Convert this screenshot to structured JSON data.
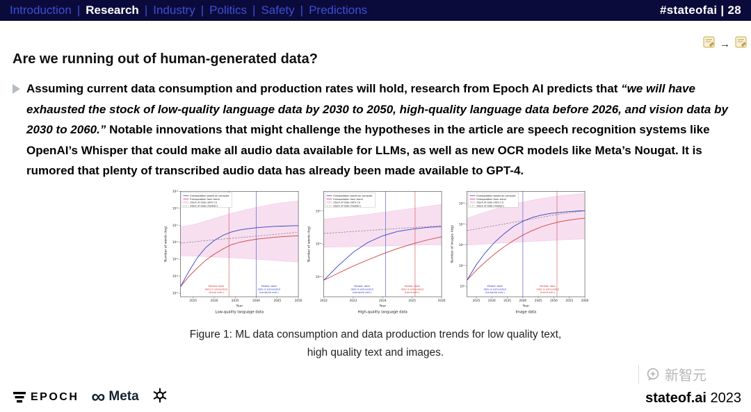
{
  "nav": {
    "separator": "|",
    "items": [
      {
        "label": "Introduction",
        "active": false
      },
      {
        "label": "Research",
        "active": true
      },
      {
        "label": "Industry",
        "active": false
      },
      {
        "label": "Politics",
        "active": false
      },
      {
        "label": "Safety",
        "active": false
      },
      {
        "label": "Predictions",
        "active": false
      }
    ],
    "right": "#stateofai | 28"
  },
  "icons": {
    "arrow": "→",
    "infinity": "∞"
  },
  "colors": {
    "navbar_bg": "#0b0b3b",
    "nav_link": "#3e4ed6",
    "nav_active": "#ffffff",
    "watermark": "#b0b0b0"
  },
  "main": {
    "title": "Are we running out of human-generated data?",
    "bullet": {
      "part1": "Assuming current data consumption and production rates will hold, research from Epoch AI predicts that ",
      "quote": "“we will have exhausted the stock of low-quality language data by 2030 to 2050, high-quality language data before 2026, and vision data by 2030 to 2060.”",
      "part2": " Notable innovations that might challenge the hypotheses in the article are speech recognition systems like OpenAI’s Whisper that could make all audio data available for LLMs, as well as new OCR models like Meta’s Nougat. It is rumored that plenty of transcribed audio data has already been made available to GPT-4."
    }
  },
  "caption": {
    "line1": "Figure 1: ML data consumption and data production trends for low quality text,",
    "line2": "high quality text and images."
  },
  "footer": {
    "epoch_label": "EPOCH",
    "meta_label": "Meta",
    "stateofai_bold": "stateof.ai",
    "year": " 2023",
    "watermark": "新智元"
  },
  "chart_style": {
    "compute": "#2f3fc1",
    "trend": "#d23a3a",
    "band": "#edb9de",
    "band_edge": "#e27fc3",
    "median": "#7a7a7a"
  },
  "chart_data": [
    {
      "type": "line",
      "title": "Low-quality language data",
      "xlabel": "Year",
      "ylabel": "Number of words (log)",
      "legend": [
        "Extrapolation based on compute",
        "Extrapolation from trend",
        "Stock of data (90% CI)",
        "Stock of data (median)"
      ],
      "xlim": [
        2022,
        2050
      ],
      "ylim": [
        12.8,
        19
      ],
      "xticks": [
        2025,
        2030,
        2035,
        2040,
        2045,
        2050
      ],
      "ytick_exponents": [
        13,
        14,
        15,
        16,
        17,
        18,
        19
      ],
      "x": [
        2022,
        2024,
        2026,
        2028,
        2030,
        2032,
        2034,
        2036,
        2038,
        2040,
        2042,
        2044,
        2046,
        2048,
        2050
      ],
      "series": {
        "compute": [
          13.4,
          14.3,
          15.1,
          15.7,
          16.1,
          16.4,
          16.6,
          16.72,
          16.8,
          16.86,
          16.9,
          16.93,
          16.95,
          16.97,
          16.98
        ],
        "trend": [
          13.4,
          14.0,
          14.5,
          14.95,
          15.3,
          15.6,
          15.85,
          16.0,
          16.1,
          16.18,
          16.24,
          16.29,
          16.33,
          16.36,
          16.38
        ],
        "stock_median": [
          15.95,
          16.0,
          16.05,
          16.1,
          16.14,
          16.19,
          16.23,
          16.28,
          16.32,
          16.37,
          16.41,
          16.46,
          16.5,
          16.55,
          16.6
        ],
        "ci_upper": [
          16.9,
          17.0,
          17.1,
          17.25,
          17.4,
          17.55,
          17.7,
          17.82,
          17.94,
          18.05,
          18.15,
          18.25,
          18.32,
          18.38,
          18.42
        ],
        "ci_lower": [
          15.2,
          15.2,
          15.18,
          15.16,
          15.14,
          15.12,
          15.1,
          15.07,
          15.04,
          15.0,
          14.97,
          14.94,
          14.9,
          14.87,
          14.84
        ]
      },
      "vlines": [
        {
          "x": 2033.5,
          "color": "trend"
        },
        {
          "x": 2040,
          "color": "compute"
        }
      ],
      "annotations": [
        {
          "x": 2030.5,
          "color": "trend",
          "lines": [
            "Median date",
            "data is exhausted",
            "(trend extr.)"
          ]
        },
        {
          "x": 2043,
          "color": "compute",
          "lines": [
            "Median date",
            "data is exhausted",
            "(compute extr.)"
          ]
        }
      ]
    },
    {
      "type": "line",
      "title": "High-quality language data",
      "xlabel": "Year",
      "ylabel": "Number of words (log)",
      "legend": [
        "Extrapolation based on compute",
        "Extrapolation from trend",
        "Stock of data (90% CI)",
        "Stock of data (median)"
      ],
      "xlim": [
        2022,
        2026
      ],
      "ylim": [
        12.4,
        15.6
      ],
      "xticks": [
        2022,
        2023,
        2024,
        2025,
        2026
      ],
      "ytick_exponents": [
        13,
        14,
        15
      ],
      "x": [
        2022,
        2022.5,
        2023,
        2023.5,
        2024,
        2024.5,
        2025,
        2025.5,
        2026
      ],
      "series": {
        "compute": [
          12.9,
          13.35,
          13.75,
          14.05,
          14.25,
          14.38,
          14.45,
          14.5,
          14.53
        ],
        "trend": [
          12.9,
          13.12,
          13.33,
          13.52,
          13.7,
          13.86,
          14.0,
          14.12,
          14.22
        ],
        "stock_median": [
          14.32,
          14.35,
          14.38,
          14.41,
          14.44,
          14.47,
          14.5,
          14.53,
          14.56
        ],
        "ci_upper": [
          14.75,
          14.8,
          14.85,
          14.9,
          14.96,
          15.02,
          15.08,
          15.14,
          15.2
        ],
        "ci_lower": [
          13.9,
          13.91,
          13.92,
          13.93,
          13.94,
          13.95,
          13.96,
          13.97,
          13.98
        ]
      },
      "vlines": [
        {
          "x": 2024.1,
          "color": "compute"
        },
        {
          "x": 2025.1,
          "color": "trend"
        }
      ],
      "annotations": [
        {
          "x": 2023.3,
          "color": "compute",
          "lines": [
            "Median date",
            "data is exhausted",
            "(compute extr.)"
          ]
        },
        {
          "x": 2025.0,
          "color": "trend",
          "lines": [
            "Median date",
            "data is exhausted",
            "(trend extr.)"
          ]
        }
      ]
    },
    {
      "type": "line",
      "title": "Image data",
      "xlabel": "Year",
      "ylabel": "Number of images (log)",
      "legend": [
        "Extrapolation based on compute",
        "Extrapolation from trend",
        "Stock of data (90% CI)",
        "Stock of data (median)"
      ],
      "xlim": [
        2022,
        2060
      ],
      "ylim": [
        8.5,
        13.6
      ],
      "xticks": [
        2025,
        2030,
        2035,
        2040,
        2045,
        2050,
        2055,
        2060
      ],
      "ytick_exponents": [
        9,
        10,
        11,
        12,
        13
      ],
      "x": [
        2022,
        2025,
        2028,
        2031,
        2034,
        2037,
        2040,
        2043,
        2046,
        2049,
        2052,
        2055,
        2058,
        2060
      ],
      "series": {
        "compute": [
          9.3,
          10.05,
          10.65,
          11.15,
          11.55,
          11.9,
          12.15,
          12.33,
          12.45,
          12.53,
          12.58,
          12.62,
          12.65,
          12.66
        ],
        "trend": [
          9.3,
          9.78,
          10.2,
          10.58,
          10.92,
          11.22,
          11.48,
          11.7,
          11.88,
          12.02,
          12.13,
          12.21,
          12.27,
          12.3
        ],
        "stock_median": [
          11.7,
          11.78,
          11.86,
          11.94,
          12.02,
          12.1,
          12.18,
          12.26,
          12.34,
          12.42,
          12.5,
          12.56,
          12.62,
          12.66
        ],
        "ci_upper": [
          12.3,
          12.45,
          12.6,
          12.74,
          12.87,
          12.98,
          13.08,
          13.17,
          13.25,
          13.32,
          13.38,
          13.43,
          13.47,
          13.5
        ],
        "ci_lower": [
          11.0,
          11.02,
          11.05,
          11.08,
          11.1,
          11.13,
          11.15,
          11.18,
          11.2,
          11.22,
          11.25,
          11.27,
          11.29,
          11.3
        ]
      },
      "vlines": [
        {
          "x": 2040,
          "color": "compute"
        },
        {
          "x": 2051,
          "color": "trend"
        }
      ],
      "annotations": [
        {
          "x": 2031,
          "color": "compute",
          "lines": [
            "Median date",
            "data is exhausted",
            "(compute extr.)"
          ]
        },
        {
          "x": 2048,
          "color": "trend",
          "lines": [
            "Median date",
            "data is exhausted",
            "(trend extr.)"
          ]
        }
      ]
    }
  ]
}
